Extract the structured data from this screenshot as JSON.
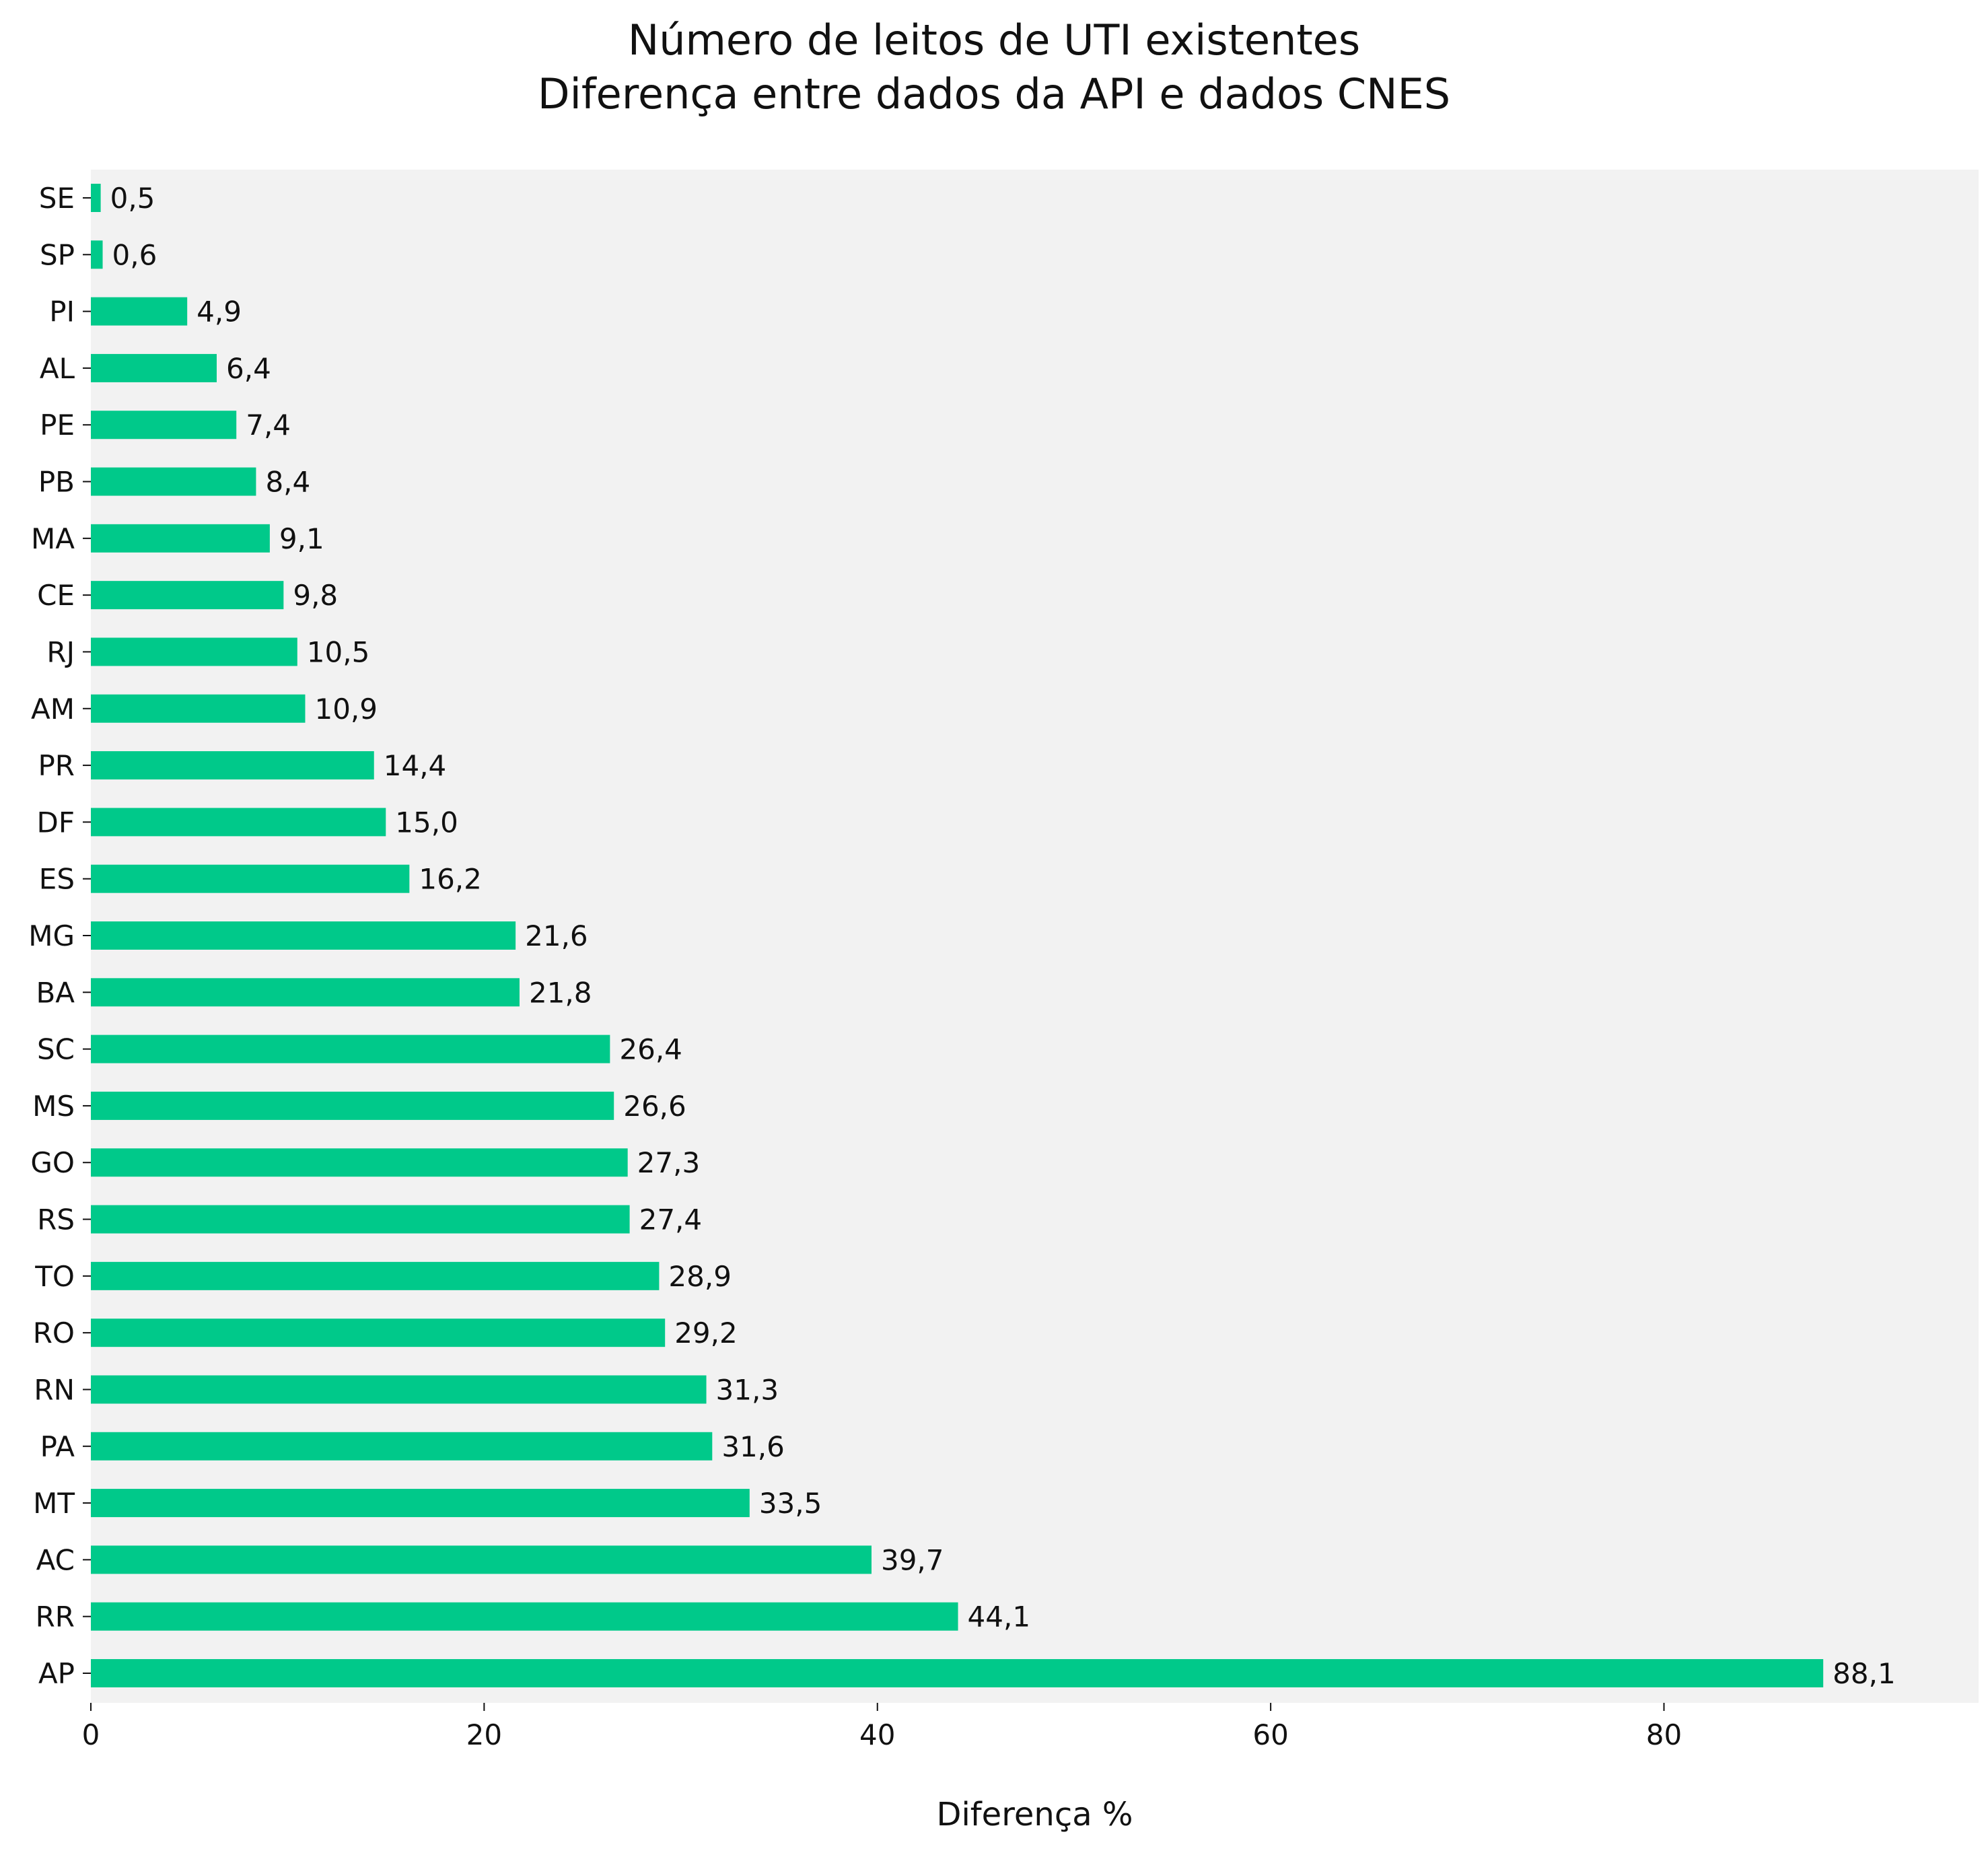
{
  "chart_data": {
    "type": "bar",
    "orientation": "horizontal",
    "title": [
      "Número de leitos de UTI existentes",
      "Diferença entre dados da API e dados CNES"
    ],
    "xlabel": "Diferença %",
    "ylabel": "",
    "xlim": [
      0,
      96
    ],
    "xticks": [
      0,
      20,
      40,
      60,
      80
    ],
    "grid": false,
    "bar_color": "#00c98a",
    "background_color": "#f2f2f2",
    "categories": [
      "SE",
      "SP",
      "PI",
      "AL",
      "PE",
      "PB",
      "MA",
      "CE",
      "RJ",
      "AM",
      "PR",
      "DF",
      "ES",
      "MG",
      "BA",
      "SC",
      "MS",
      "GO",
      "RS",
      "TO",
      "RO",
      "RN",
      "PA",
      "MT",
      "AC",
      "RR",
      "AP"
    ],
    "values": [
      0.5,
      0.6,
      4.9,
      6.4,
      7.4,
      8.4,
      9.1,
      9.8,
      10.5,
      10.9,
      14.4,
      15.0,
      16.2,
      21.6,
      21.8,
      26.4,
      26.6,
      27.3,
      27.4,
      28.9,
      29.2,
      31.3,
      31.6,
      33.5,
      39.7,
      44.1,
      88.1
    ],
    "labels": [
      "0,5",
      "0,6",
      "4,9",
      "6,4",
      "7,4",
      "8,4",
      "9,1",
      "9,8",
      "10,5",
      "10,9",
      "14,4",
      "15,0",
      "16,2",
      "21,6",
      "21,8",
      "26,4",
      "26,6",
      "27,3",
      "27,4",
      "28,9",
      "29,2",
      "31,3",
      "31,6",
      "33,5",
      "39,7",
      "44,1",
      "88,1"
    ]
  }
}
